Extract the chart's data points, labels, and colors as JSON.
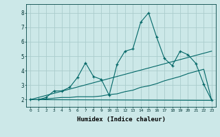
{
  "xlabel": "Humidex (Indice chaleur)",
  "background_color": "#cce8e8",
  "grid_color": "#aacccc",
  "line_color": "#006666",
  "xlim": [
    -0.5,
    23.5
  ],
  "ylim": [
    1.5,
    8.6
  ],
  "yticks": [
    2,
    3,
    4,
    5,
    6,
    7,
    8
  ],
  "xticks": [
    0,
    1,
    2,
    3,
    4,
    5,
    6,
    7,
    8,
    9,
    10,
    11,
    12,
    13,
    14,
    15,
    16,
    17,
    18,
    19,
    20,
    21,
    22,
    23
  ],
  "series1_x": [
    0,
    1,
    2,
    3,
    4,
    5,
    6,
    7,
    8,
    9,
    10,
    11,
    12,
    13,
    14,
    15,
    16,
    17,
    18,
    19,
    20,
    21,
    22,
    23
  ],
  "series1_y": [
    2.0,
    2.0,
    2.15,
    2.6,
    2.6,
    2.85,
    3.55,
    4.55,
    3.6,
    3.4,
    2.3,
    4.45,
    5.35,
    5.5,
    7.35,
    8.0,
    6.35,
    4.85,
    4.35,
    5.35,
    5.1,
    4.5,
    3.05,
    1.95
  ],
  "series2_x": [
    0,
    1,
    2,
    3,
    4,
    5,
    6,
    7,
    8,
    9,
    10,
    11,
    12,
    13,
    14,
    15,
    16,
    17,
    18,
    19,
    20,
    21,
    22,
    23
  ],
  "series2_y": [
    2.0,
    2.0,
    2.05,
    2.1,
    2.15,
    2.15,
    2.2,
    2.2,
    2.2,
    2.25,
    2.35,
    2.4,
    2.55,
    2.65,
    2.85,
    2.95,
    3.1,
    3.3,
    3.45,
    3.6,
    3.8,
    3.95,
    4.1,
    1.95
  ],
  "series3_x": [
    0,
    23
  ],
  "series3_y": [
    2.0,
    5.35
  ],
  "series4_x": [
    0,
    23
  ],
  "series4_y": [
    2.0,
    1.95
  ]
}
